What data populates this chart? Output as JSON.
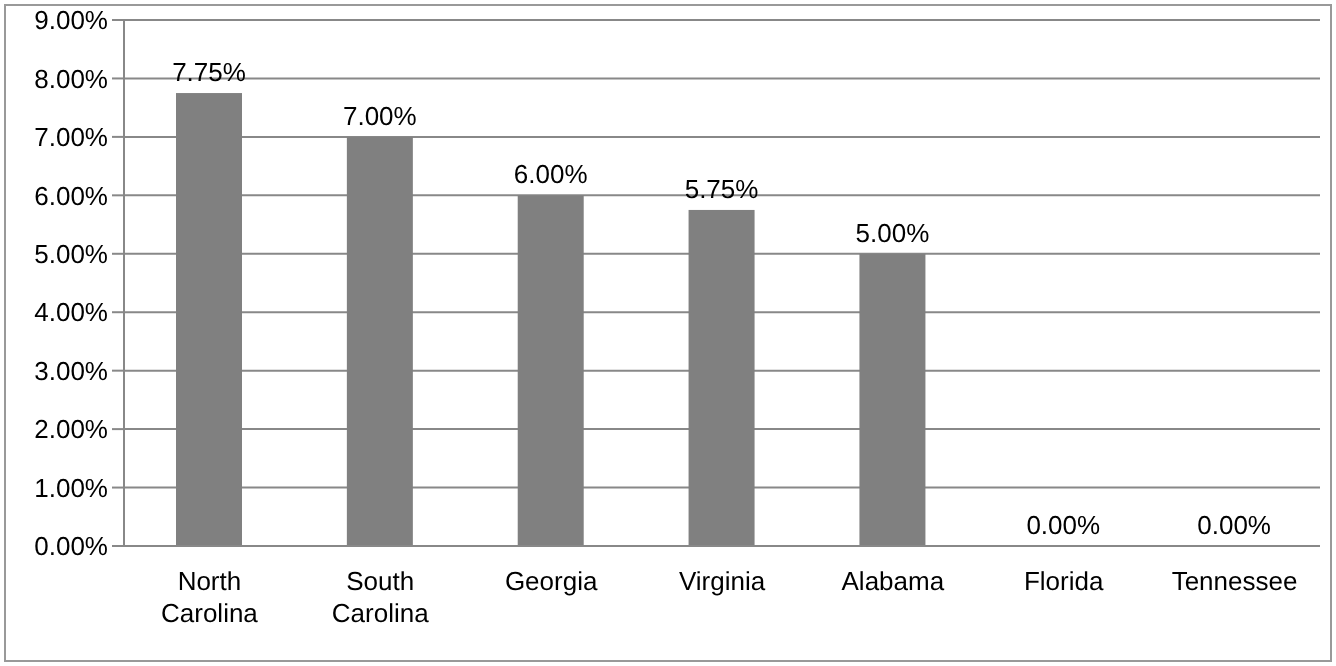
{
  "chart_data": {
    "type": "bar",
    "categories": [
      "North Carolina",
      "South Carolina",
      "Georgia",
      "Virginia",
      "Alabama",
      "Florida",
      "Tennessee"
    ],
    "values": [
      7.75,
      7.0,
      6.0,
      5.75,
      5.0,
      0,
      0
    ],
    "value_labels": [
      "7.75%",
      "7.00%",
      "6.00%",
      "5.75%",
      "5.00%",
      "0.00%",
      "0.00%"
    ],
    "color": "#808080",
    "ylim": [
      0,
      9
    ],
    "yticks": [
      {
        "value": 0,
        "label": "0.00%"
      },
      {
        "value": 1,
        "label": "1.00%"
      },
      {
        "value": 2,
        "label": "2.00%"
      },
      {
        "value": 3,
        "label": "3.00%"
      },
      {
        "value": 4,
        "label": "4.00%"
      },
      {
        "value": 5,
        "label": "5.00%"
      },
      {
        "value": 6,
        "label": "6.00%"
      },
      {
        "value": 7,
        "label": "7.00%"
      },
      {
        "value": 8,
        "label": "8.00%"
      },
      {
        "value": 9,
        "label": "9.00%"
      }
    ],
    "grid": "y"
  }
}
